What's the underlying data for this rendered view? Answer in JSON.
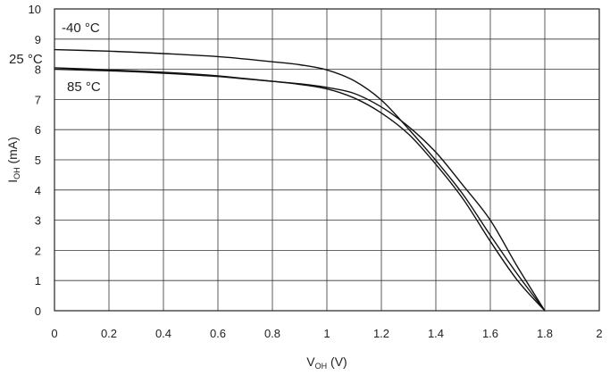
{
  "chart_data": {
    "type": "line",
    "xlabel": {
      "main": "V",
      "sub": "OH",
      "unit": " (V)"
    },
    "ylabel": {
      "main": "I",
      "sub": "OH",
      "unit": " (mA)"
    },
    "xlim": [
      0,
      2
    ],
    "ylim": [
      0,
      10
    ],
    "xticks": [
      0,
      0.2,
      0.4,
      0.6,
      0.8,
      1,
      1.2,
      1.4,
      1.6,
      1.8,
      2
    ],
    "xtick_labels": [
      "0",
      "0.2",
      "0.4",
      "0.6",
      "0.8",
      "1",
      "1.2",
      "1.4",
      "1.6",
      "1.8",
      "2"
    ],
    "yticks": [
      0,
      1,
      2,
      3,
      4,
      5,
      6,
      7,
      8,
      9,
      10
    ],
    "ytick_labels": [
      "0",
      "1",
      "2",
      "3",
      "4",
      "5",
      "6",
      "7",
      "8",
      "9",
      "10"
    ],
    "grid": true,
    "annotations": [
      "-40 °C",
      "25 °C",
      "85 °C"
    ],
    "series": [
      {
        "color": "#111111",
        "x": [
          0,
          0.2,
          0.4,
          0.6,
          0.8,
          0.9,
          1.0,
          1.1,
          1.2,
          1.3,
          1.4,
          1.5,
          1.6,
          1.7,
          1.8
        ],
        "y": [
          8.65,
          8.6,
          8.52,
          8.42,
          8.25,
          8.15,
          7.98,
          7.62,
          6.98,
          6.02,
          4.98,
          3.85,
          2.5,
          1.2,
          0
        ]
      },
      {
        "color": "#111111",
        "x": [
          0,
          0.2,
          0.4,
          0.6,
          0.8,
          0.9,
          1.0,
          1.1,
          1.2,
          1.3,
          1.4,
          1.5,
          1.6,
          1.7,
          1.8
        ],
        "y": [
          8.05,
          7.98,
          7.9,
          7.78,
          7.6,
          7.5,
          7.35,
          7.05,
          6.55,
          5.85,
          4.85,
          3.7,
          2.3,
          1.0,
          0
        ]
      },
      {
        "color": "#111111",
        "x": [
          0,
          0.2,
          0.4,
          0.6,
          0.8,
          0.9,
          1.0,
          1.1,
          1.2,
          1.3,
          1.4,
          1.5,
          1.6,
          1.7,
          1.8
        ],
        "y": [
          8.0,
          7.95,
          7.87,
          7.76,
          7.6,
          7.52,
          7.4,
          7.2,
          6.75,
          6.1,
          5.25,
          4.15,
          3.0,
          1.45,
          0
        ]
      }
    ]
  }
}
